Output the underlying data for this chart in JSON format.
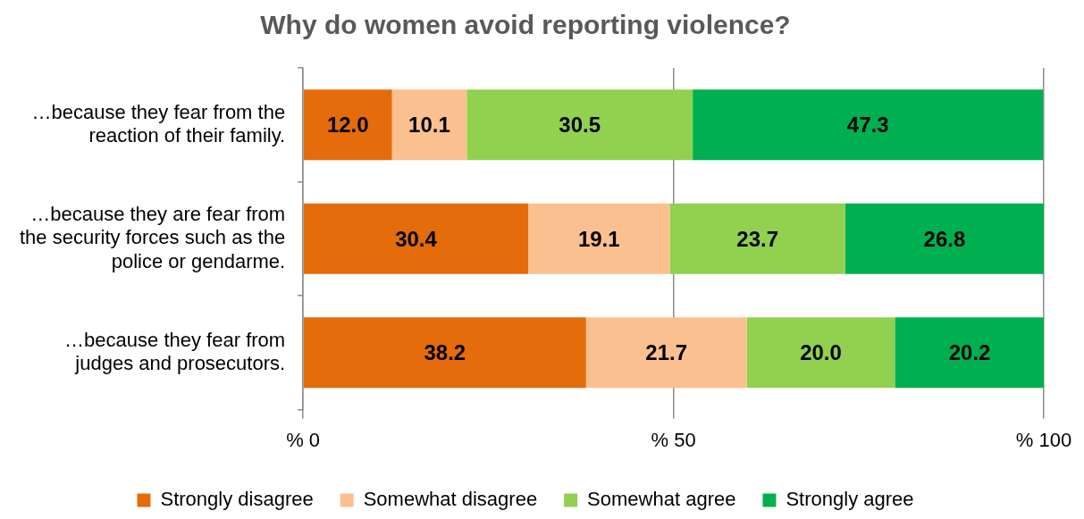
{
  "chart_data": {
    "type": "bar",
    "orientation": "horizontal",
    "stacked": true,
    "title": "Why do women avoid reporting violence?",
    "categories": [
      "…because they fear from the reaction of their family.",
      "…because they are fear from the security forces such as the police or gendarme.",
      "…because they fear from judges and prosecutors."
    ],
    "series": [
      {
        "name": "Strongly disagree",
        "color": "#e46c0a",
        "values": [
          12.0,
          30.4,
          38.2
        ],
        "value_labels": [
          "12.0",
          "30.4",
          "38.2"
        ]
      },
      {
        "name": "Somewhat disagree",
        "color": "#fac090",
        "values": [
          10.1,
          19.1,
          21.7
        ],
        "value_labels": [
          "10.1",
          "19.1",
          "21.7"
        ]
      },
      {
        "name": "Somewhat agree",
        "color": "#92d050",
        "values": [
          30.5,
          23.7,
          20.0
        ],
        "value_labels": [
          "30.5",
          "23.7",
          "20.0"
        ]
      },
      {
        "name": "Strongly agree",
        "color": "#00b050",
        "values": [
          47.3,
          26.8,
          20.2
        ],
        "value_labels": [
          "47.3",
          "26.8",
          "20.2"
        ]
      }
    ],
    "xlim": [
      0,
      100
    ],
    "xticks": [
      {
        "value": 0,
        "label": "% 0"
      },
      {
        "value": 50,
        "label": "% 50"
      },
      {
        "value": 100,
        "label": "% 100"
      }
    ],
    "grid": "x",
    "legend": "bottom"
  }
}
